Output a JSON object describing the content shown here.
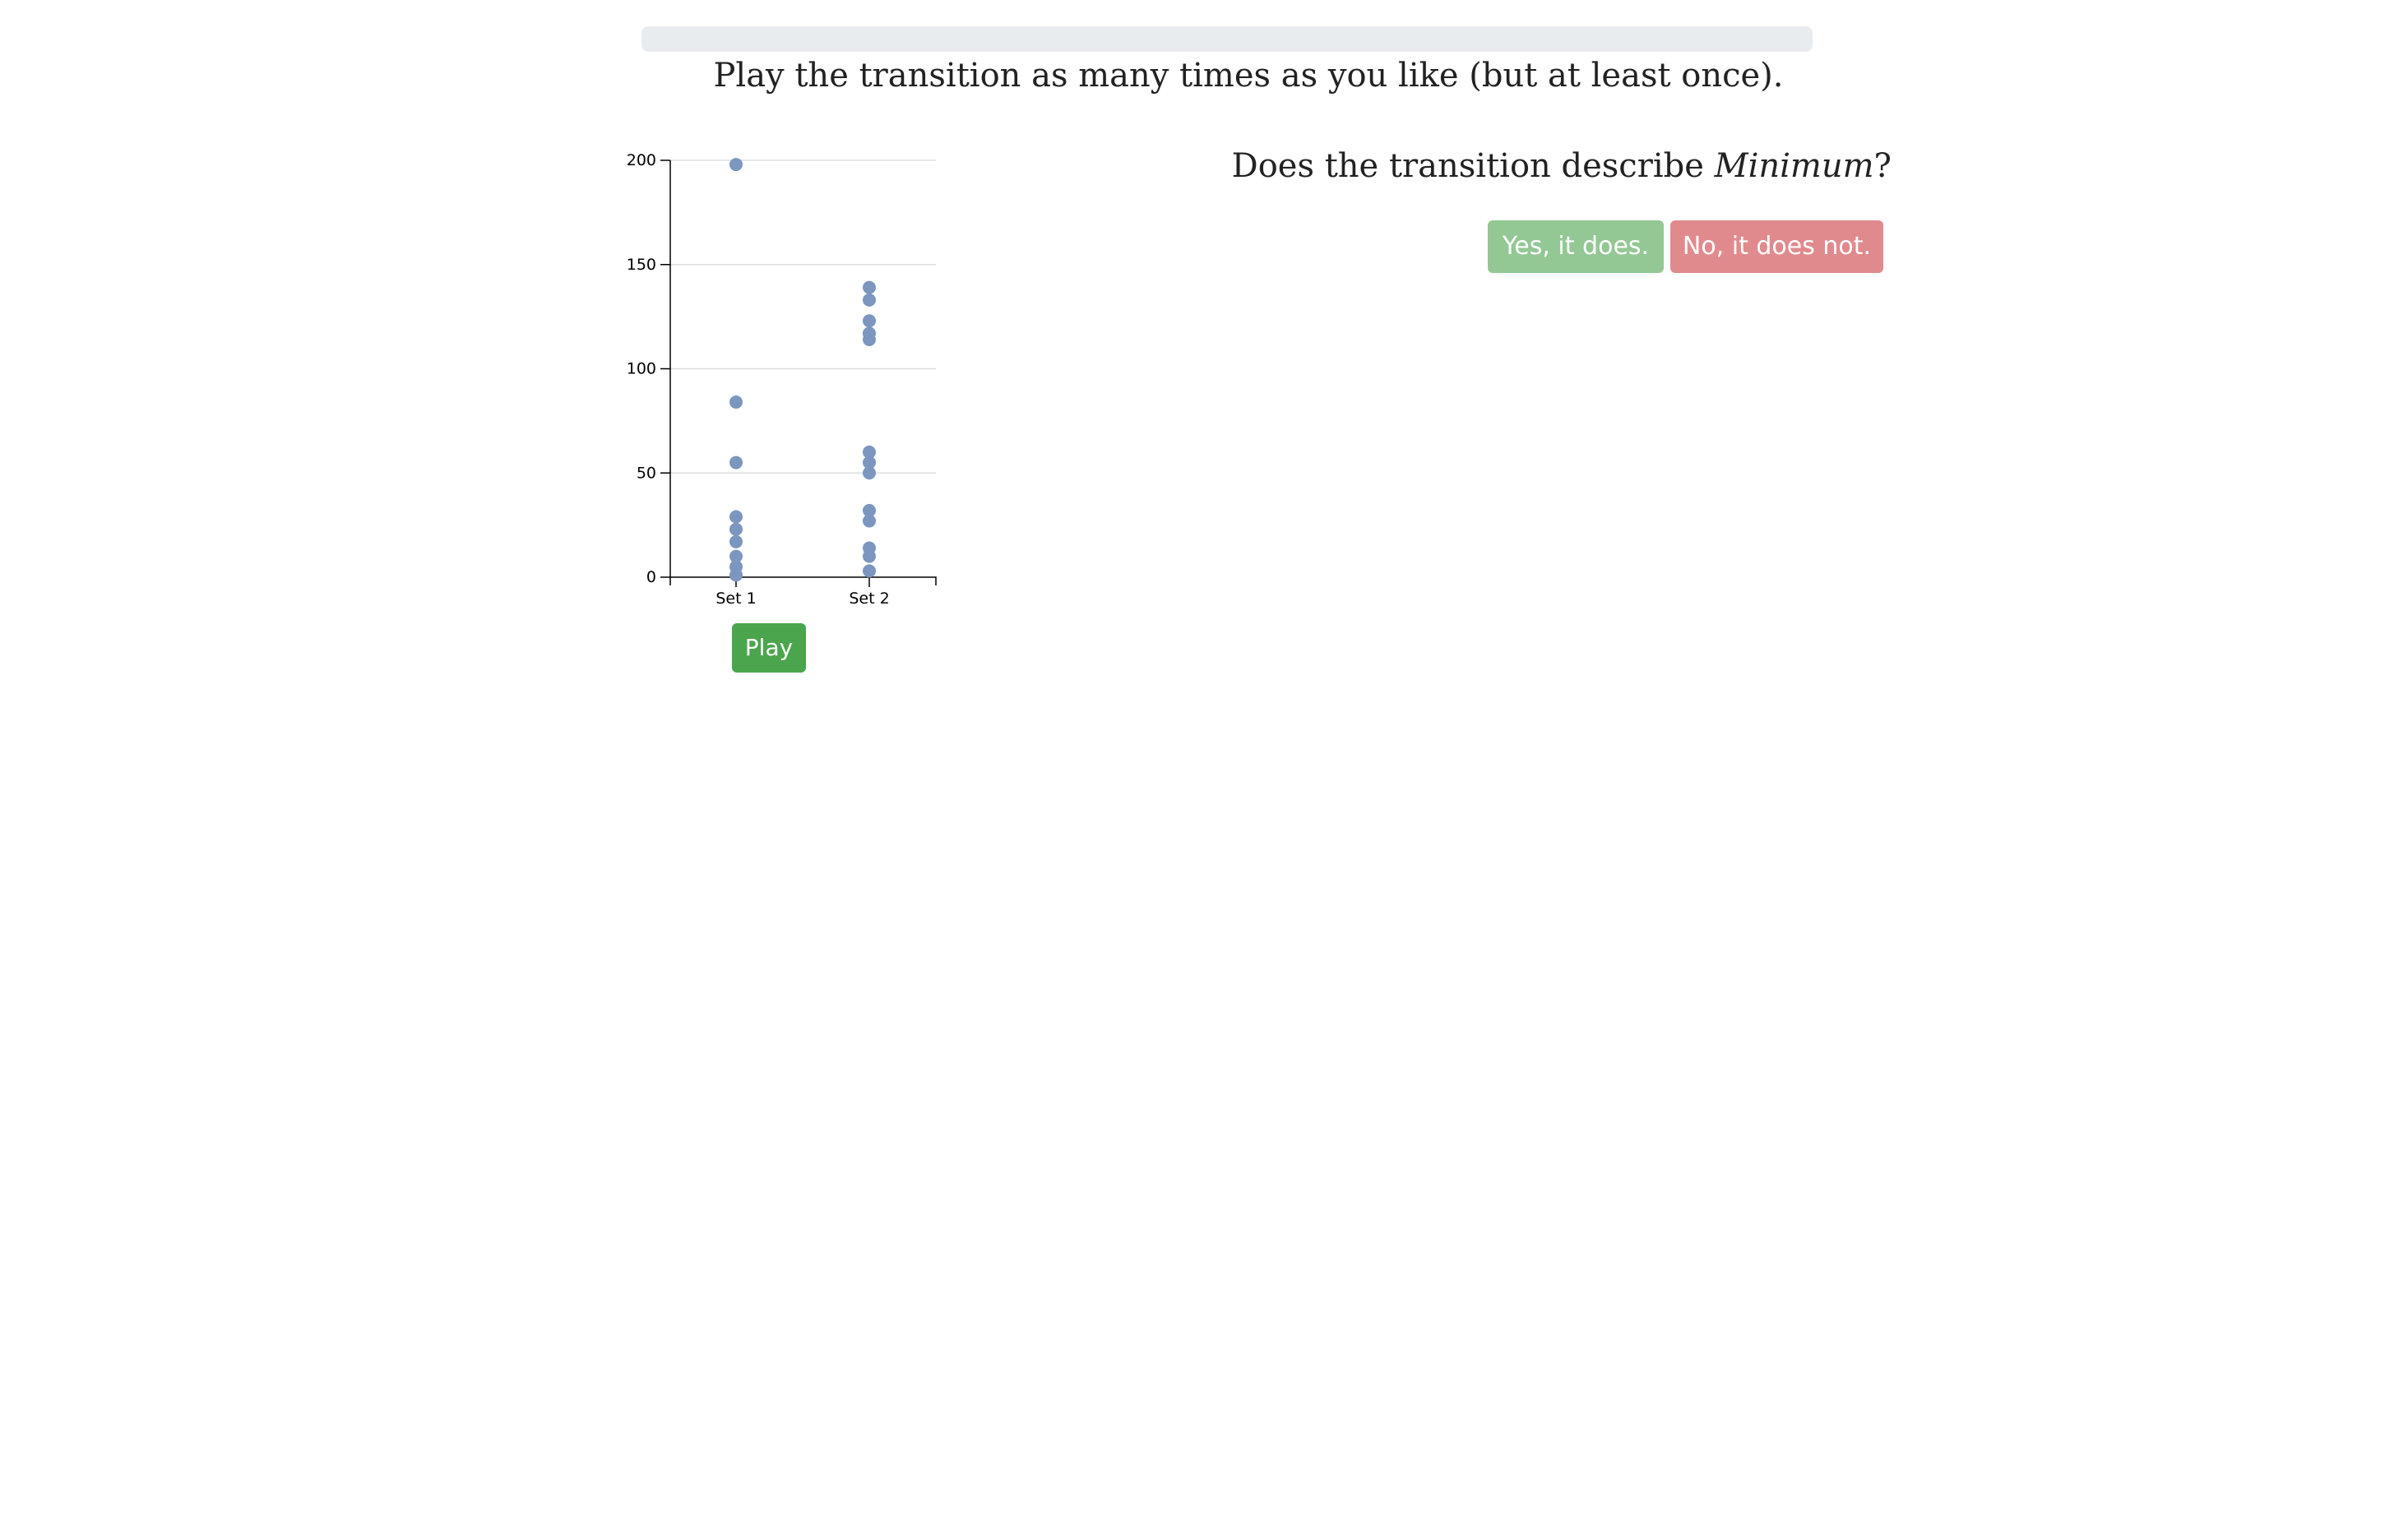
{
  "page": {
    "instructions": "Play the transition as many times as you like (but at least once).",
    "question_prefix": "Does the transition describe ",
    "question_term": "Minimum",
    "question_suffix": "?"
  },
  "controls": {
    "play_label": "Play",
    "yes_label": "Yes, it does.",
    "no_label": "No, it does not."
  },
  "colors": {
    "point": "#7b96bf",
    "gridline": "#dddddd",
    "axis": "#000000",
    "play_button": "#4ba54c",
    "yes_button": "#93c894",
    "no_button": "#e18a8d",
    "progress_track": "#e9ecef"
  },
  "chart_data": {
    "type": "scatter",
    "title": "",
    "xlabel": "",
    "ylabel": "",
    "categories": [
      "Set 1",
      "Set 2"
    ],
    "ylim": [
      0,
      200
    ],
    "yticks": [
      0,
      50,
      100,
      150,
      200
    ],
    "grid": true,
    "series": [
      {
        "category": "Set 1",
        "values": [
          198,
          84,
          55,
          29,
          23,
          17,
          10,
          5,
          1
        ]
      },
      {
        "category": "Set 2",
        "values": [
          139,
          133,
          123,
          117,
          114,
          60,
          55,
          50,
          32,
          27,
          14,
          10,
          3
        ]
      }
    ]
  }
}
